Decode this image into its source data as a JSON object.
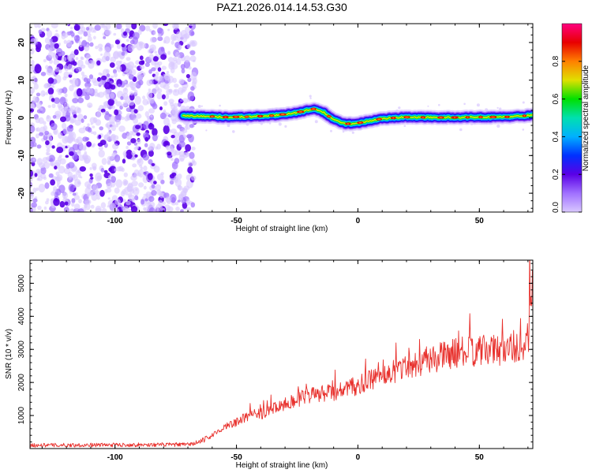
{
  "figure_title": "PAZ1.2026.014.14.53.G30",
  "colors": {
    "snr_line": "#e8302c",
    "noise": "#7b2ff2",
    "rainbow": [
      "#d9c8ff",
      "#a070ff",
      "#5a00e6",
      "#0030ff",
      "#00b0ff",
      "#00e0b0",
      "#00e000",
      "#e0e000",
      "#ff8000",
      "#e80000",
      "#ff0080"
    ]
  },
  "chart_data": [
    {
      "type": "heatmap",
      "title": "PAZ1.2026.014.14.53.G30",
      "xlabel": "Height of straight line (km)",
      "ylabel": "Frequency (Hz)",
      "xlim": [
        -135,
        72
      ],
      "ylim": [
        -25,
        25
      ],
      "xticks": [
        -100,
        -50,
        0,
        50
      ],
      "yticks": [
        -20,
        -10,
        0,
        10,
        20
      ],
      "colorbar": {
        "label": "Normalized spectral amplitude",
        "range": [
          0.0,
          1.0
        ],
        "ticks": [
          "0.0",
          "0.2",
          "0.4",
          "0.6",
          "0.8"
        ]
      },
      "noise_region_x": [
        -135,
        -67
      ],
      "ridge": {
        "x": [
          -72,
          -65,
          -55,
          -45,
          -35,
          -25,
          -18,
          -14,
          -10,
          -5,
          0,
          10,
          20,
          30,
          40,
          50,
          60,
          72
        ],
        "freq_hz": [
          0.5,
          0.5,
          0.2,
          0.3,
          0.6,
          1.4,
          2.4,
          1.4,
          -0.5,
          -1.6,
          -1.4,
          -0.2,
          0.2,
          0.1,
          0.1,
          0.2,
          0.2,
          0.7
        ]
      }
    },
    {
      "type": "line",
      "xlabel": "Height of straight line (km)",
      "ylabel": "SNR (10 * v/v)",
      "xlim": [
        -135,
        72
      ],
      "ylim": [
        0,
        5700
      ],
      "xticks": [
        -100,
        -50,
        0,
        50
      ],
      "yticks": [
        1000,
        2000,
        3000,
        4000,
        5000
      ],
      "series": [
        {
          "name": "SNR",
          "trend_x": [
            -135,
            -70,
            -65,
            -60,
            -55,
            -50,
            -45,
            -40,
            -30,
            -20,
            -10,
            0,
            10,
            20,
            30,
            40,
            50,
            60,
            66,
            70,
            71,
            72
          ],
          "trend_y": [
            100,
            120,
            200,
            400,
            650,
            800,
            1000,
            1050,
            1350,
            1600,
            1700,
            1900,
            2200,
            2500,
            2700,
            2900,
            2950,
            3000,
            3100,
            3000,
            4500,
            5600
          ]
        }
      ]
    }
  ]
}
